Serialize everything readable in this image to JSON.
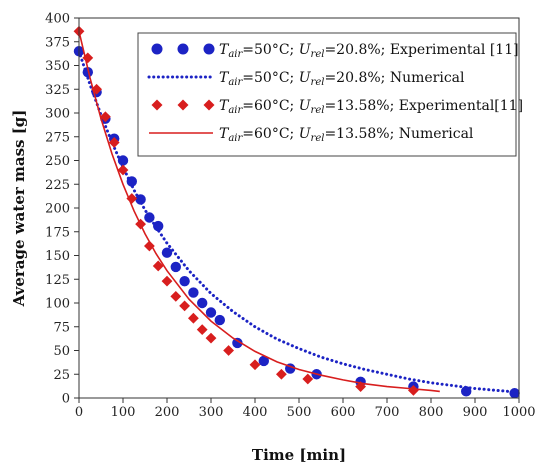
{
  "chart_data": {
    "type": "scatter",
    "title": "",
    "xlabel": "Time [min]",
    "ylabel": "Average water mass [g]",
    "xlim": [
      0,
      1000
    ],
    "ylim": [
      0,
      400
    ],
    "xticks": [
      0,
      100,
      200,
      300,
      400,
      500,
      600,
      700,
      800,
      900,
      1000
    ],
    "yticks": [
      0,
      25,
      50,
      75,
      100,
      125,
      150,
      175,
      200,
      225,
      250,
      275,
      300,
      325,
      350,
      375,
      400
    ],
    "grid": false,
    "legend_position": "top-right",
    "series": [
      {
        "legend": {
          "sym": "T",
          "sym_sub": "air",
          "eq1": "=50°C; ",
          "sym2": "U",
          "sym2_sub": "rel",
          "rest": "=20.8%; Experimental [11]"
        },
        "kind": "markers",
        "marker": "circle",
        "color": "#1c23c4",
        "x": [
          0,
          20,
          40,
          60,
          80,
          100,
          120,
          140,
          160,
          180,
          200,
          220,
          240,
          260,
          280,
          300,
          320,
          360,
          420,
          480,
          540,
          640,
          760,
          880,
          990
        ],
        "y": [
          365,
          343,
          322,
          294,
          273,
          250,
          228,
          209,
          190,
          181,
          153,
          138,
          123,
          111,
          100,
          90,
          82,
          58,
          39,
          31,
          25,
          17,
          12,
          7,
          5
        ]
      },
      {
        "legend": {
          "sym": "T",
          "sym_sub": "air",
          "eq1": "=50°C; ",
          "sym2": "U",
          "sym2_sub": "rel",
          "rest": "=20.8%; Numerical"
        },
        "kind": "line",
        "dash": "dotted",
        "color": "#1c23c4",
        "x": [
          0,
          25,
          50,
          75,
          100,
          125,
          150,
          175,
          200,
          250,
          300,
          350,
          400,
          450,
          500,
          550,
          600,
          650,
          700,
          750,
          800,
          850,
          900,
          950,
          1000
        ],
        "y": [
          365,
          330,
          298,
          269,
          243,
          219,
          198,
          180,
          163,
          134,
          110,
          91,
          75,
          62,
          52,
          43,
          36,
          30,
          25,
          20,
          16,
          13,
          10,
          8,
          6
        ]
      },
      {
        "legend": {
          "sym": "T",
          "sym_sub": "air",
          "eq1": "=60°C; ",
          "sym2": "U",
          "sym2_sub": "rel",
          "rest": "=13.58%; Experimental[11]"
        },
        "kind": "markers",
        "marker": "diamond",
        "color": "#d81e1e",
        "x": [
          0,
          20,
          40,
          60,
          80,
          100,
          120,
          140,
          160,
          180,
          200,
          220,
          240,
          260,
          280,
          300,
          340,
          400,
          460,
          520,
          640,
          760
        ],
        "y": [
          386,
          358,
          325,
          296,
          269,
          240,
          210,
          183,
          160,
          139,
          123,
          107,
          97,
          84,
          72,
          63,
          50,
          35,
          25,
          20,
          12,
          8
        ]
      },
      {
        "legend": {
          "sym": "T",
          "sym_sub": "air",
          "eq1": "=60°C; ",
          "sym2": "U",
          "sym2_sub": "rel",
          "rest": "=13.58%; Numerical"
        },
        "kind": "line",
        "dash": "solid",
        "color": "#d81e1e",
        "x": [
          0,
          25,
          50,
          75,
          100,
          125,
          150,
          175,
          200,
          250,
          300,
          350,
          400,
          450,
          500,
          550,
          600,
          650,
          700,
          750,
          800,
          820
        ],
        "y": [
          386,
          337,
          294,
          257,
          225,
          197,
          173,
          152,
          134,
          104,
          81,
          63,
          49,
          38,
          30,
          24,
          19,
          15,
          12,
          10,
          8,
          7
        ]
      }
    ]
  }
}
